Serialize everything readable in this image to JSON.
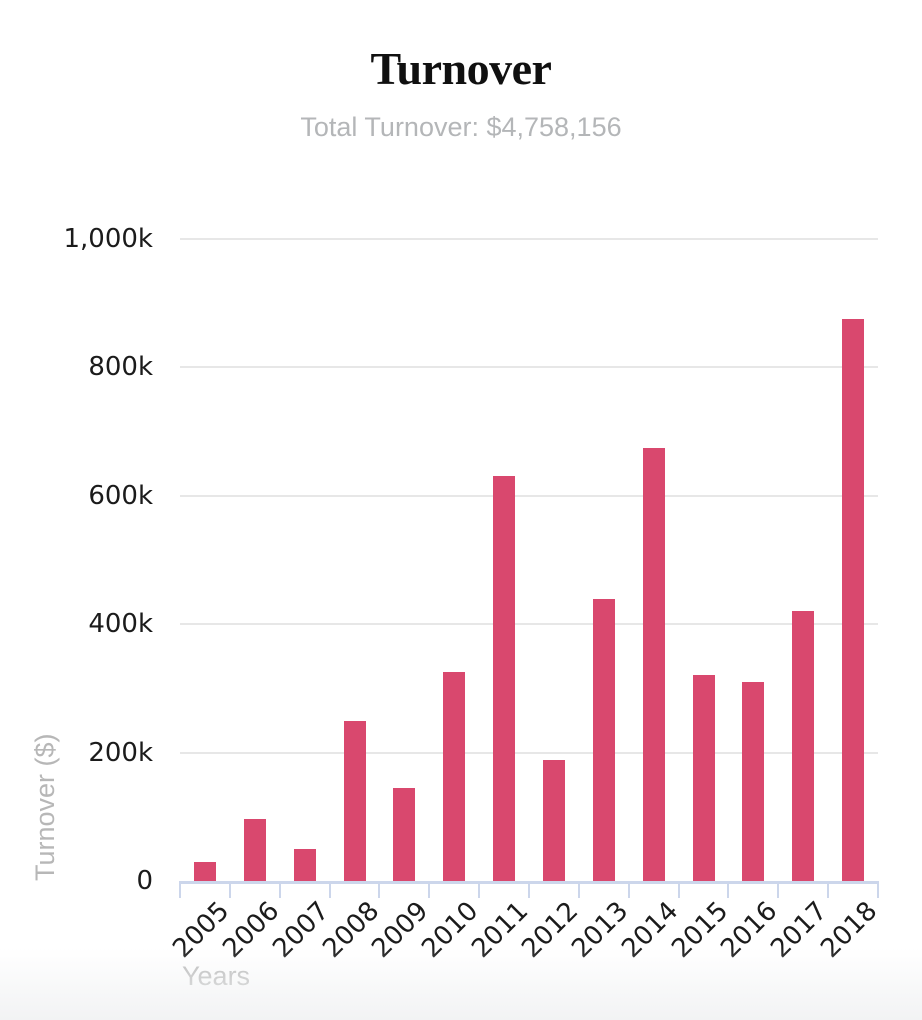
{
  "header": {
    "title": "Turnover",
    "subtitle": "Total Turnover: $4,758,156"
  },
  "chart_data": {
    "type": "bar",
    "title": "Turnover",
    "subtitle": "Total Turnover: $4,758,156",
    "total_turnover_shown": "$4,758,156",
    "categories": [
      "2005",
      "2006",
      "2007",
      "2008",
      "2009",
      "2010",
      "2011",
      "2012",
      "2013",
      "2014",
      "2015",
      "2016",
      "2017",
      "2018"
    ],
    "series": [
      {
        "name": "Turnover",
        "unit": "thousands of $",
        "values": [
          29,
          97,
          50,
          250,
          145,
          325,
          631,
          189,
          440,
          675,
          321,
          310,
          421,
          875
        ]
      }
    ],
    "xlabel": "Years",
    "ylabel": "Turnover ($)",
    "ylim": [
      0,
      1000
    ],
    "ytick_labels": [
      "0",
      "200k",
      "400k",
      "600k",
      "800k",
      "1,000k"
    ],
    "grid": true,
    "legend_position": "none",
    "x_label_rotation_deg": -45
  },
  "colors": {
    "bar": "#d9486e",
    "gridline": "#e7e7e7",
    "axis_line": "#ccd6eb",
    "tick_label_text": "#1b1b1b",
    "muted_text": "#b7b7b7",
    "title_text": "#101010",
    "background": "#ffffff"
  }
}
